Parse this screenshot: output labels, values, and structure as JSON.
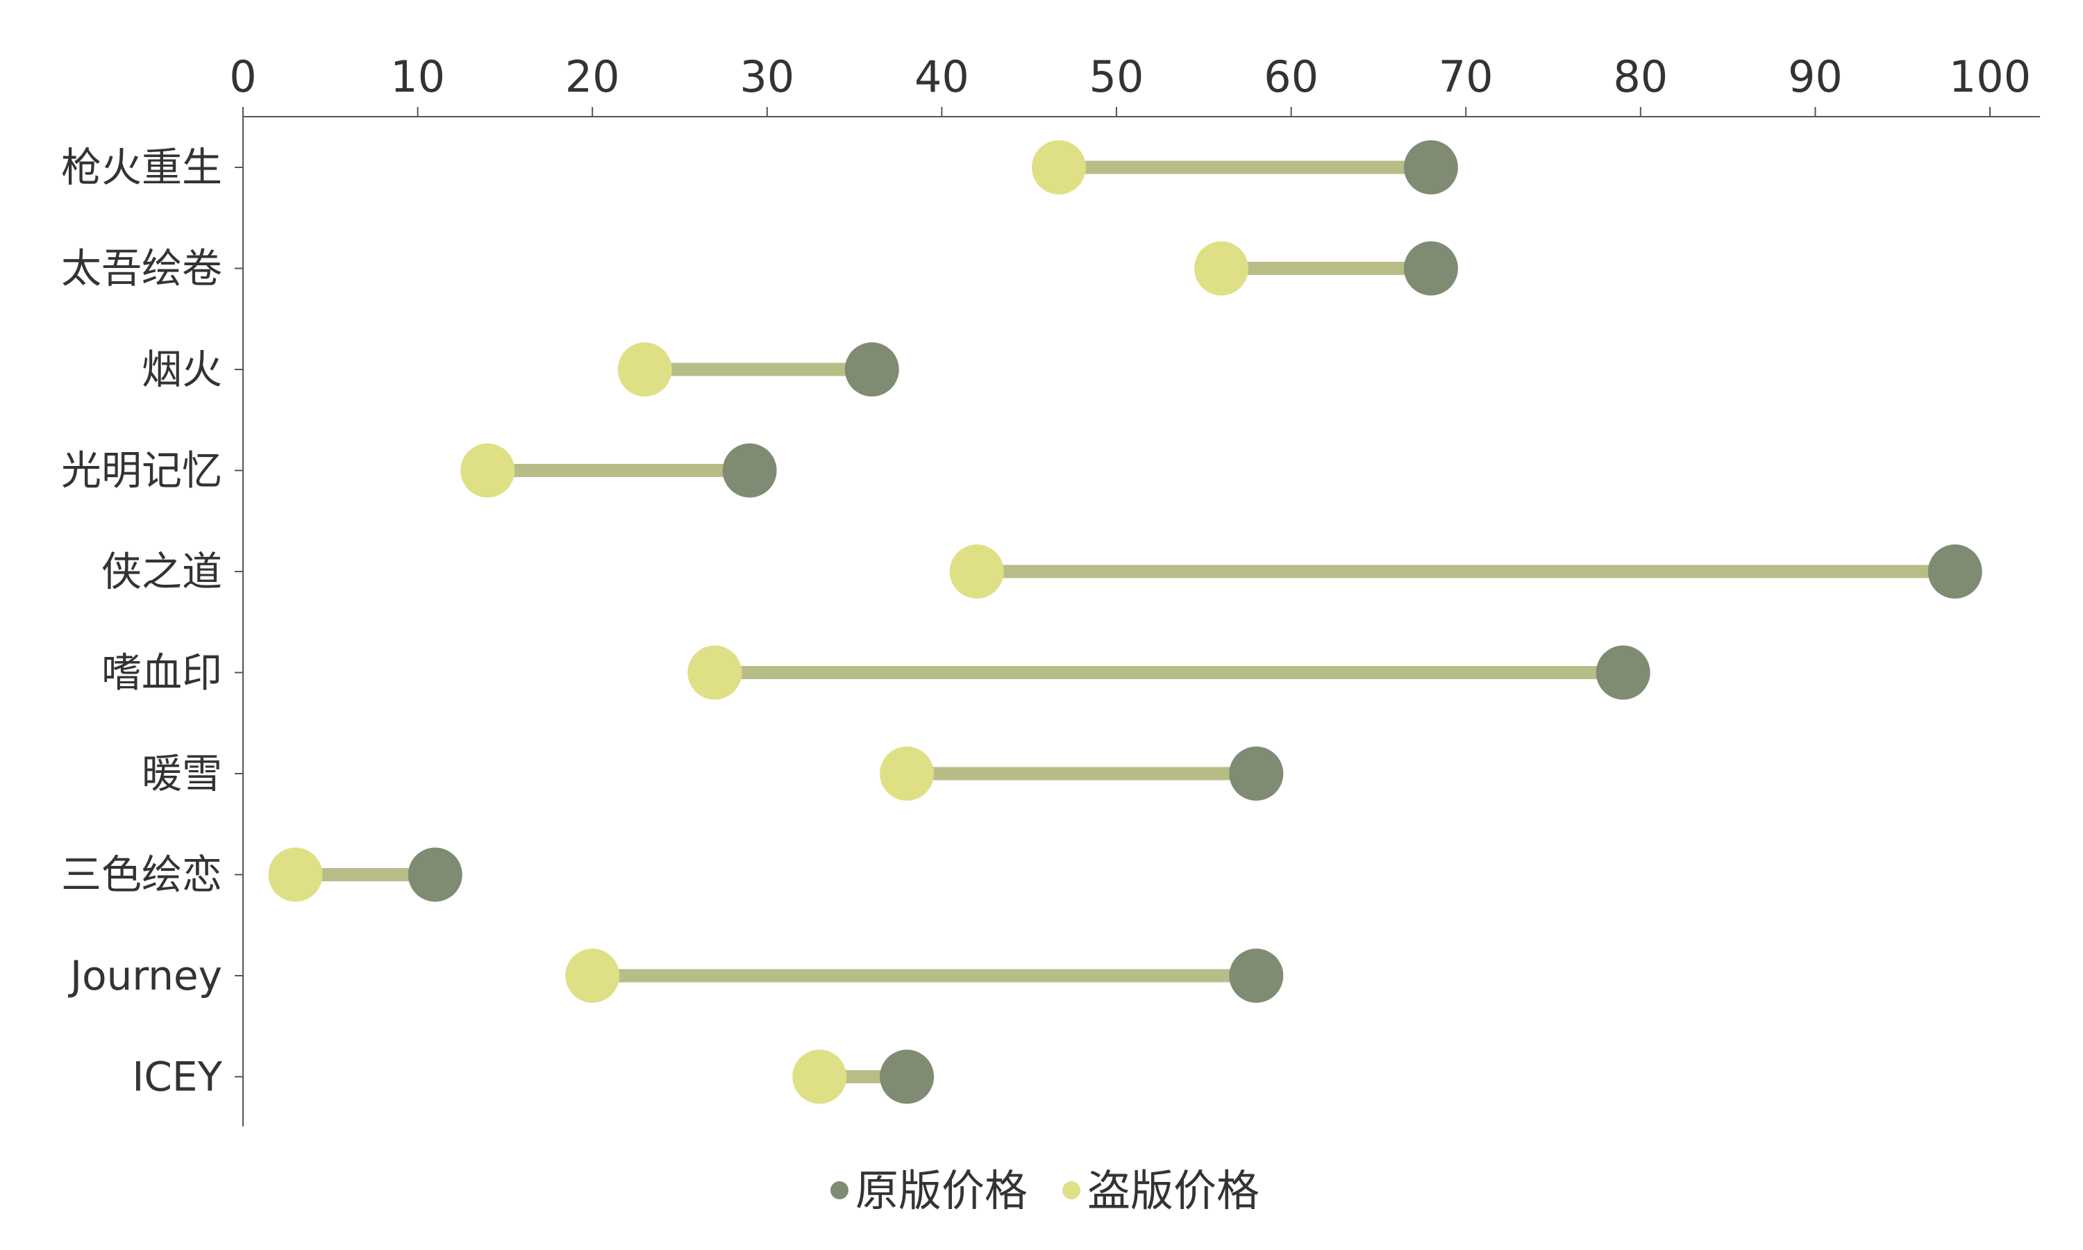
{
  "chart_data": {
    "type": "dumbbell",
    "orientation": "horizontal",
    "xlim": [
      0,
      100
    ],
    "xticks": [
      0,
      10,
      20,
      30,
      40,
      50,
      60,
      70,
      80,
      90,
      100
    ],
    "x_axis_position": "top",
    "grid": false,
    "legend_position": "bottom-center",
    "categories": [
      "枪火重生",
      "太吾绘卷",
      "烟火",
      "光明记忆",
      "侠之道",
      "嗜血印",
      "暖雪",
      "三色绘恋",
      "Journey",
      "ICEY"
    ],
    "series": [
      {
        "name": "原版价格",
        "color": "#7f8c73",
        "values": [
          68,
          68,
          36,
          29,
          98,
          79,
          58,
          11,
          58,
          38
        ]
      },
      {
        "name": "盗版价格",
        "color": "#dfe086",
        "values": [
          46.7,
          56,
          23,
          14,
          42,
          27,
          38,
          3,
          20,
          33
        ]
      }
    ],
    "connector_color": "#b8bd88",
    "axis_color": "#555555"
  }
}
